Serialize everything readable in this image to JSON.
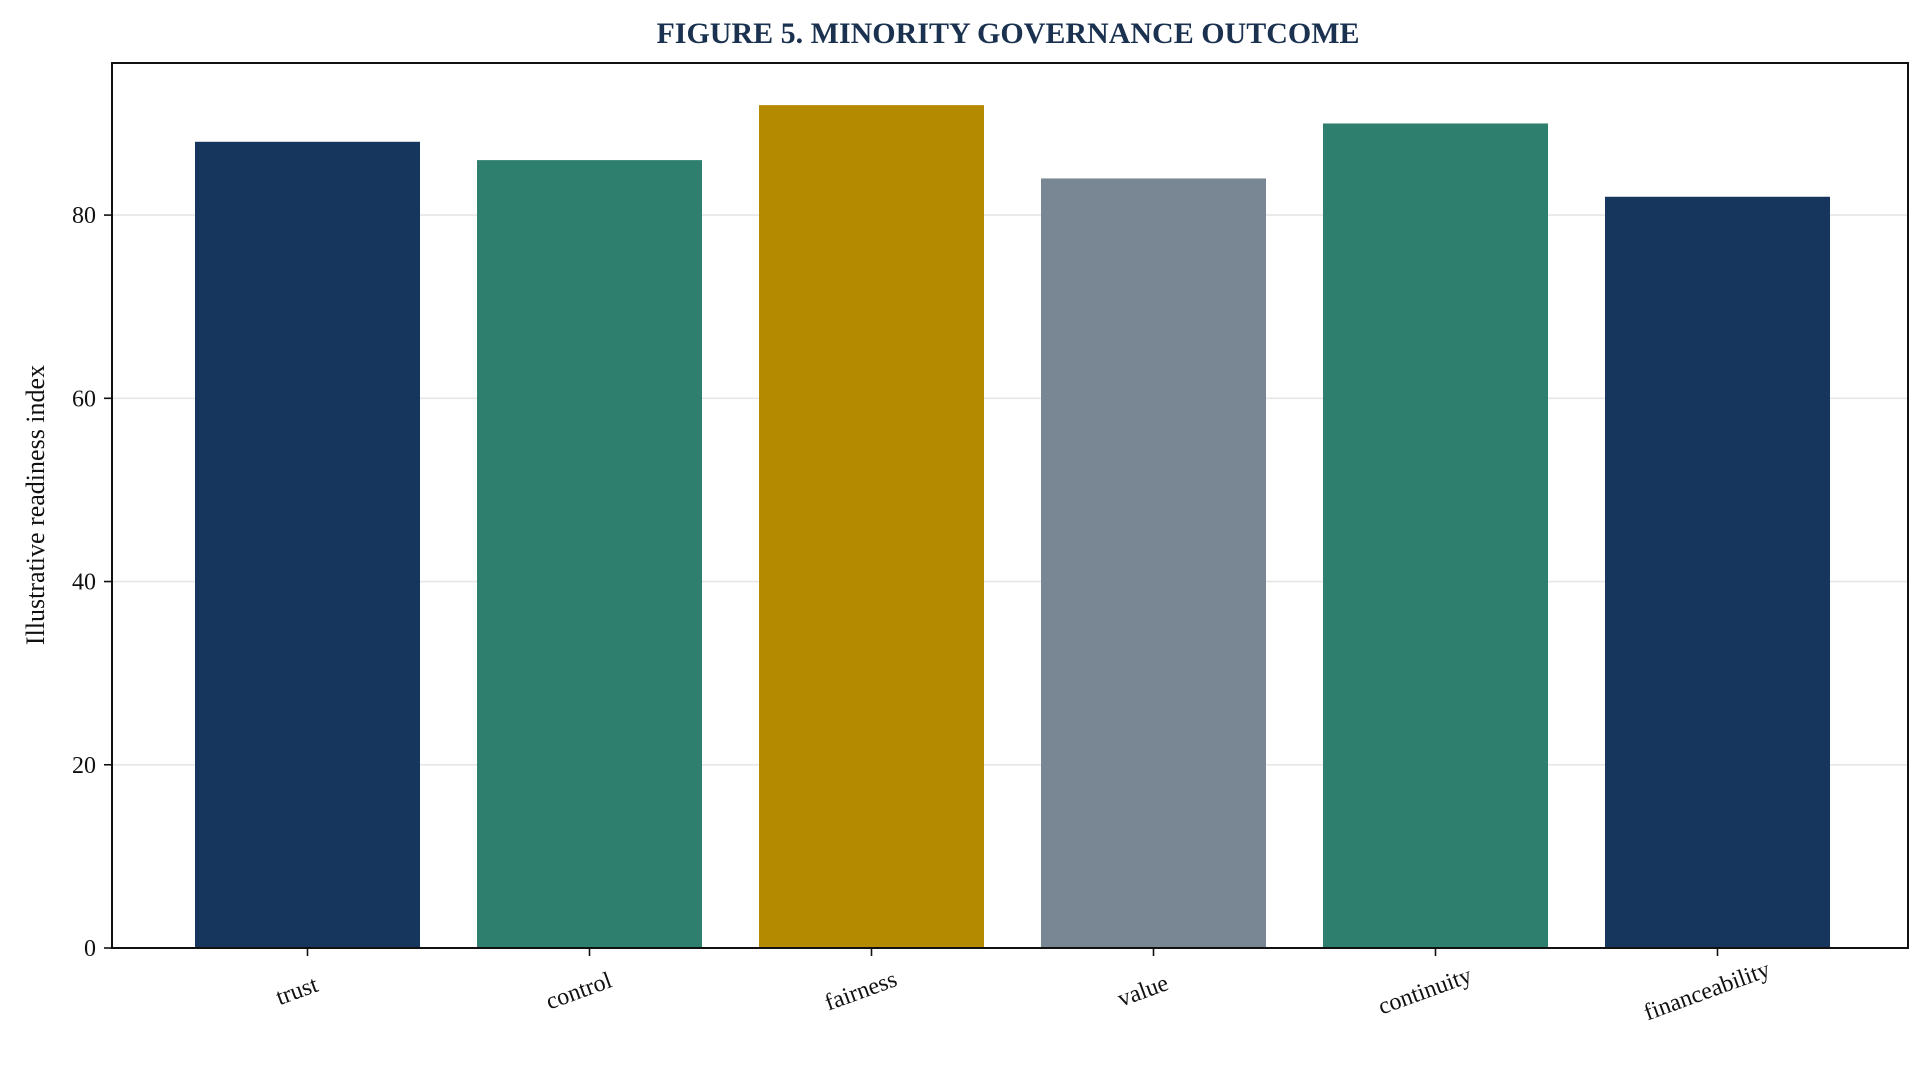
{
  "chart_data": {
    "type": "bar",
    "title": "FIGURE 5. MINORITY GOVERNANCE OUTCOME",
    "xlabel": "",
    "ylabel": "Illustrative readiness index",
    "categories": [
      "trust",
      "control",
      "fairness",
      "value",
      "continuity",
      "financeability"
    ],
    "values": [
      88,
      86,
      92,
      84,
      90,
      82
    ],
    "colors": [
      "#17365d",
      "#2e7f6e",
      "#b38a00",
      "#798795",
      "#2e7f6e",
      "#17365d"
    ],
    "ylim": [
      0,
      96.6
    ],
    "yticks": [
      0,
      20,
      40,
      60,
      80
    ],
    "grid": "horizontal",
    "legend": "none"
  }
}
